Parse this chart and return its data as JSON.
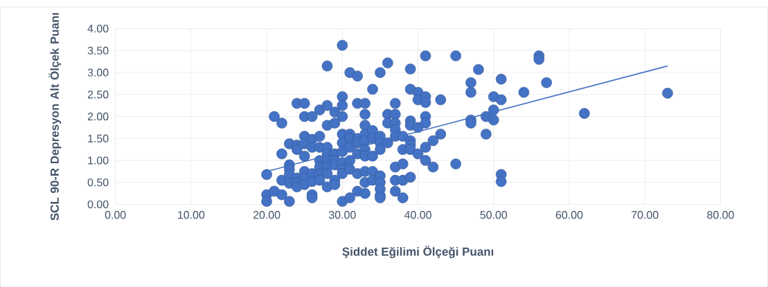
{
  "chart_data": {
    "type": "scatter",
    "xlabel": "Şiddet Eğilimi Ölçeği Puanı",
    "ylabel": "SCL 90-R Depresyon Alt Ölçek Puanı",
    "xlim": [
      0,
      80
    ],
    "ylim": [
      0,
      4
    ],
    "xticks": [
      {
        "value": 0,
        "label": "0.00"
      },
      {
        "value": 10,
        "label": "10.00"
      },
      {
        "value": 20,
        "label": "20.00"
      },
      {
        "value": 30,
        "label": "30.00"
      },
      {
        "value": 40,
        "label": "40.00"
      },
      {
        "value": 50,
        "label": "50.00"
      },
      {
        "value": 60,
        "label": "60.00"
      },
      {
        "value": 70,
        "label": "70.00"
      },
      {
        "value": 80,
        "label": "80.00"
      }
    ],
    "yticks": [
      {
        "value": 0,
        "label": "0.00"
      },
      {
        "value": 0.5,
        "label": "0.50"
      },
      {
        "value": 1,
        "label": "1.00"
      },
      {
        "value": 1.5,
        "label": "1.50"
      },
      {
        "value": 2,
        "label": "2.00"
      },
      {
        "value": 2.5,
        "label": "2.50"
      },
      {
        "value": 3,
        "label": "3.00"
      },
      {
        "value": 3.5,
        "label": "3.50"
      },
      {
        "value": 4,
        "label": "4.00"
      }
    ],
    "grid": true,
    "series": [
      {
        "color": "#4472c4",
        "marker": "circle",
        "x": [
          20,
          20,
          20,
          21,
          21,
          22,
          22,
          22,
          22,
          23,
          23,
          23,
          23,
          23,
          23,
          24,
          24,
          24,
          24,
          24,
          24,
          25,
          25,
          25,
          25,
          25,
          25,
          25,
          25,
          26,
          26,
          26,
          26,
          26,
          26,
          26,
          27,
          27,
          27,
          27,
          27,
          27,
          27,
          28,
          28,
          28,
          28,
          28,
          28,
          28,
          28,
          28,
          29,
          29,
          29,
          29,
          29,
          29,
          29,
          30,
          30,
          30,
          30,
          30,
          30,
          30,
          30,
          30,
          30,
          30,
          31,
          31,
          31,
          31,
          31,
          31,
          31,
          32,
          32,
          32,
          32,
          32,
          32,
          32,
          33,
          33,
          33,
          33,
          33,
          33,
          33,
          33,
          33,
          33,
          34,
          34,
          34,
          34,
          34,
          34,
          35,
          35,
          35,
          35,
          35,
          35,
          35,
          35,
          35,
          36,
          36,
          36,
          36,
          37,
          37,
          37,
          37,
          37,
          37,
          37,
          37,
          38,
          38,
          38,
          38,
          38,
          39,
          39,
          39,
          39,
          39,
          39,
          39,
          39,
          40,
          40,
          40,
          40,
          41,
          41,
          41,
          41,
          41,
          41,
          41,
          42,
          42,
          43,
          43,
          45,
          45,
          47,
          47,
          47,
          47,
          48,
          49,
          49,
          50,
          50,
          50,
          51,
          51,
          51,
          51,
          54,
          56,
          56,
          57,
          62,
          73
        ],
        "values": [
          0.68,
          0.22,
          0.07,
          2.0,
          0.3,
          1.85,
          1.15,
          0.55,
          0.22,
          1.38,
          0.9,
          0.8,
          0.68,
          0.48,
          0.07,
          2.3,
          1.35,
          1.25,
          0.6,
          0.5,
          0.4,
          2.3,
          2.0,
          1.55,
          1.38,
          1.1,
          0.75,
          0.6,
          0.45,
          2.0,
          1.48,
          1.3,
          0.7,
          0.52,
          0.22,
          0.15,
          2.15,
          1.55,
          1.3,
          1.0,
          0.85,
          0.7,
          0.55,
          3.15,
          2.25,
          1.8,
          1.3,
          1.15,
          1.0,
          0.85,
          0.7,
          0.4,
          2.1,
          1.85,
          1.15,
          1.0,
          0.9,
          0.55,
          0.45,
          3.62,
          2.45,
          2.25,
          2.0,
          1.6,
          1.4,
          1.2,
          0.95,
          0.8,
          0.7,
          0.07,
          3.0,
          1.6,
          1.5,
          1.3,
          1.0,
          0.8,
          0.15,
          2.92,
          2.3,
          1.5,
          1.4,
          1.15,
          0.7,
          0.3,
          2.3,
          2.05,
          1.8,
          1.6,
          1.45,
          1.25,
          1.1,
          0.75,
          0.5,
          0.25,
          2.62,
          1.68,
          1.5,
          1.1,
          0.75,
          0.55,
          3.0,
          1.55,
          1.4,
          1.25,
          0.65,
          0.5,
          0.35,
          0.2,
          0.15,
          3.22,
          2.05,
          1.85,
          1.4,
          2.3,
          2.05,
          1.85,
          1.7,
          1.55,
          0.85,
          0.55,
          0.3,
          1.55,
          1.25,
          0.92,
          0.55,
          0.15,
          3.08,
          2.62,
          1.9,
          1.8,
          1.45,
          1.35,
          1.25,
          0.62,
          2.55,
          2.38,
          1.75,
          1.15,
          3.38,
          2.45,
          2.32,
          2.0,
          1.85,
          1.3,
          1.0,
          1.45,
          0.85,
          2.38,
          1.6,
          3.38,
          0.92,
          2.77,
          2.55,
          1.92,
          1.85,
          3.07,
          2.0,
          1.6,
          2.45,
          2.15,
          1.92,
          2.85,
          2.38,
          0.68,
          0.52,
          2.55,
          3.38,
          3.3,
          2.77,
          2.07,
          2.53
        ]
      },
      {
        "type": "line",
        "color": "#4472c4",
        "x": [
          20,
          73
        ],
        "values": [
          0.75,
          3.15
        ]
      }
    ]
  }
}
